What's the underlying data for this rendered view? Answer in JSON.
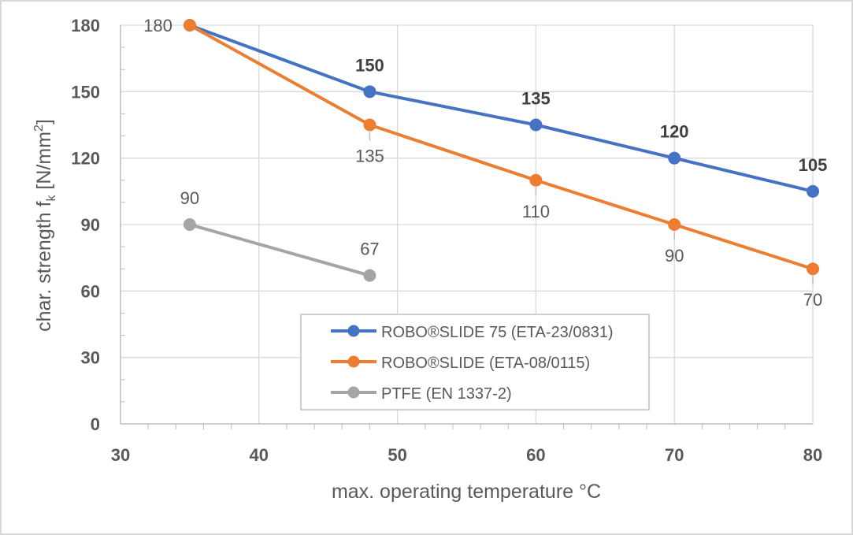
{
  "chart_data": {
    "type": "line",
    "xlabel": "max. operating temperature °C",
    "ylabel": {
      "main": "char. strength f",
      "sub": "k",
      "unit_pre": " [N/mm",
      "sup": "2",
      "unit_post": "]"
    },
    "xlim": [
      30,
      80
    ],
    "ylim": [
      0,
      180
    ],
    "x_ticks": [
      30,
      40,
      50,
      60,
      70,
      80
    ],
    "y_ticks": [
      0,
      30,
      60,
      90,
      120,
      150,
      180
    ],
    "grid": true,
    "legend_position": "center-bottom",
    "series": [
      {
        "name": "ROBO®SLIDE 75 (ETA-23/0831)",
        "color": "#4472C4",
        "x": [
          35,
          48,
          60,
          70,
          80
        ],
        "values": [
          180,
          150,
          135,
          120,
          105
        ],
        "labels": [
          "",
          "150",
          "135",
          "120",
          "105"
        ],
        "label_position": "above",
        "label_bold": true
      },
      {
        "name": "ROBO®SLIDE (ETA-08/0115)",
        "color": "#ED7D31",
        "x": [
          35,
          48,
          60,
          70,
          80
        ],
        "values": [
          180,
          135,
          110,
          90,
          70
        ],
        "labels": [
          "180",
          "135",
          "110",
          "90",
          "70"
        ],
        "label_position": "below",
        "label_bold": false
      },
      {
        "name": "PTFE (EN 1337-2)",
        "color": "#A5A5A5",
        "x": [
          35,
          48
        ],
        "values": [
          90,
          67
        ],
        "labels": [
          "90",
          "67"
        ],
        "label_position": "above",
        "label_bold": false
      }
    ]
  }
}
